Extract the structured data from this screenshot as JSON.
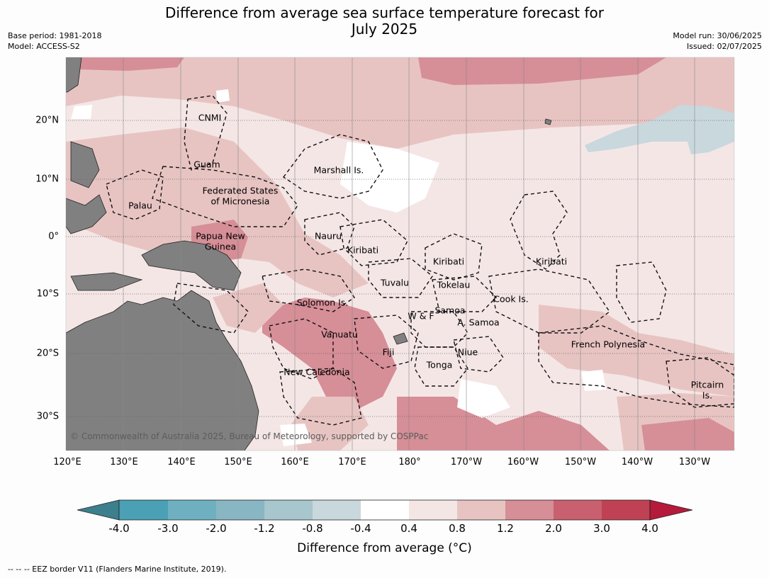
{
  "title_line1": "Difference from average sea surface temperature forecast for",
  "title_line2": "July 2025",
  "meta": {
    "base_period": "Base period: 1981-2018",
    "model": "Model: ACCESS-S2",
    "model_run": "Model run: 30/06/2025",
    "issued": "Issued: 02/07/2025"
  },
  "lon_labels": [
    "120°E",
    "130°E",
    "140°E",
    "150°E",
    "160°E",
    "170°E",
    "180°",
    "170°W",
    "160°W",
    "150°W",
    "140°W",
    "130°W"
  ],
  "lat_labels": [
    "20°N",
    "10°N",
    "0°",
    "10°S",
    "20°S",
    "30°S"
  ],
  "regions": [
    {
      "name": "CNMI"
    },
    {
      "name": "Guam"
    },
    {
      "name": "Federated States"
    },
    {
      "name": "of Micronesia"
    },
    {
      "name": "Palau"
    },
    {
      "name": "Marshall Is."
    },
    {
      "name": "Papua New"
    },
    {
      "name": "Guinea"
    },
    {
      "name": "Nauru"
    },
    {
      "name": "Kiribati"
    },
    {
      "name": "Kiribati"
    },
    {
      "name": "Kiribati"
    },
    {
      "name": "Tuvalu"
    },
    {
      "name": "Tokelau"
    },
    {
      "name": "Cook Is."
    },
    {
      "name": "Solomon Is."
    },
    {
      "name": "W & F"
    },
    {
      "name": "Samoa"
    },
    {
      "name": "A. Samoa"
    },
    {
      "name": "Vanuatu"
    },
    {
      "name": "Fiji"
    },
    {
      "name": "Niue"
    },
    {
      "name": "Tonga"
    },
    {
      "name": "New Caledonia"
    },
    {
      "name": "French Polynesia"
    },
    {
      "name": "Pitcairn"
    },
    {
      "name": "Is."
    }
  ],
  "copyright": "© Commonwealth of Australia 2025, Bureau of Meteorology, supported by COSPPac",
  "colorbar": {
    "title": "Difference from average (°C)",
    "ticks": [
      "-4.0",
      "-3.0",
      "-2.0",
      "-1.2",
      "-0.8",
      "-0.4",
      "0.4",
      "0.8",
      "1.2",
      "2.0",
      "3.0",
      "4.0"
    ],
    "colors": [
      "#3c7f8d",
      "#4aa0b5",
      "#6eb0c0",
      "#89b6c3",
      "#a7c6cd",
      "#c8d8dd",
      "#ffffff",
      "#f5e6e6",
      "#e7c4c2",
      "#d68e97",
      "#c9606f",
      "#bf4153",
      "#b51a3a"
    ]
  },
  "footer": "-- -- -- EEZ border V11 (Flanders Marine Institute, 2019)."
}
